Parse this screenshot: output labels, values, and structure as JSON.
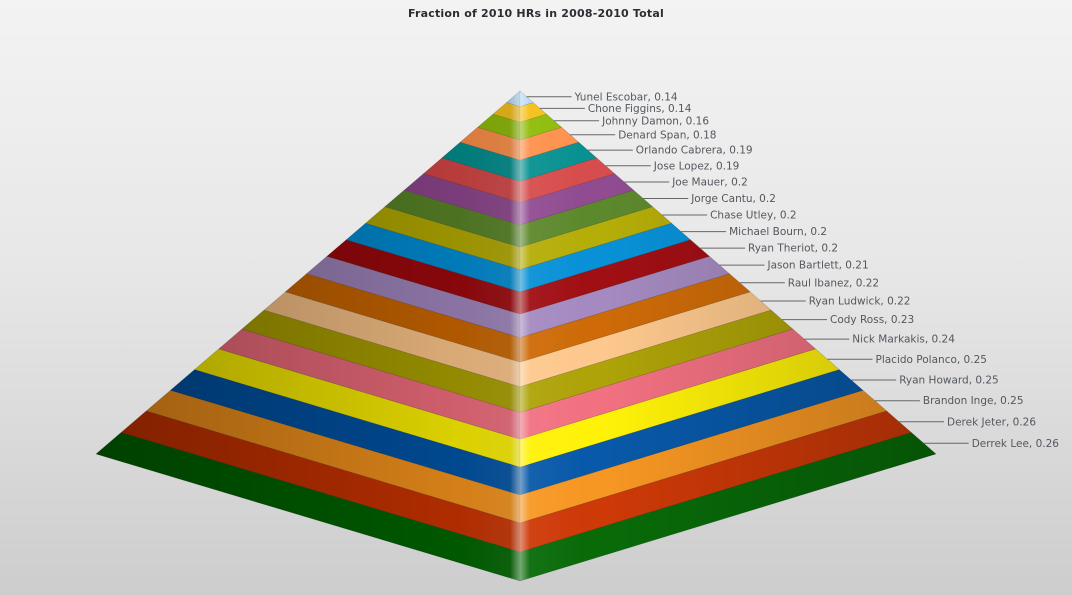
{
  "chart_data": {
    "type": "pyramid",
    "title": "Fraction of 2010 HRs in 2008-2010 Total",
    "label_format": "{name}, {value}",
    "labels_position": "right",
    "legend": "none",
    "points": [
      {
        "label": "Yunel Escobar",
        "value": 0.14,
        "color": "#AFD8F8"
      },
      {
        "label": "Chone Figgins",
        "value": 0.14,
        "color": "#F6BD0F"
      },
      {
        "label": "Johnny Damon",
        "value": 0.16,
        "color": "#8BBA00"
      },
      {
        "label": "Denard Span",
        "value": 0.18,
        "color": "#FF8E46"
      },
      {
        "label": "Orlando Cabrera",
        "value": 0.19,
        "color": "#008E8E"
      },
      {
        "label": "Jose Lopez",
        "value": 0.19,
        "color": "#D64646"
      },
      {
        "label": "Joe Mauer",
        "value": 0.2,
        "color": "#8E468E"
      },
      {
        "label": "Jorge Cantu",
        "value": 0.2,
        "color": "#588526"
      },
      {
        "label": "Chase Utley",
        "value": 0.2,
        "color": "#B3AA00"
      },
      {
        "label": "Michael Bourn",
        "value": 0.2,
        "color": "#008ED6"
      },
      {
        "label": "Ryan Theriot",
        "value": 0.2,
        "color": "#9D080D"
      },
      {
        "label": "Jason Bartlett",
        "value": 0.21,
        "color": "#A186BE"
      },
      {
        "label": "Raul Ibanez",
        "value": 0.22,
        "color": "#CC6600"
      },
      {
        "label": "Ryan Ludwick",
        "value": 0.22,
        "color": "#FDC689"
      },
      {
        "label": "Cody Ross",
        "value": 0.23,
        "color": "#ABA000"
      },
      {
        "label": "Nick Markakis",
        "value": 0.24,
        "color": "#F26D7D"
      },
      {
        "label": "Placido Polanco",
        "value": 0.25,
        "color": "#FFF200"
      },
      {
        "label": "Ryan Howard",
        "value": 0.25,
        "color": "#0054A6"
      },
      {
        "label": "Brandon Inge",
        "value": 0.25,
        "color": "#F7941C"
      },
      {
        "label": "Derek Jeter",
        "value": 0.26,
        "color": "#CC3300"
      },
      {
        "label": "Derrek Lee",
        "value": 0.26,
        "color": "#006600"
      }
    ],
    "styles": {
      "label_line_color": "#666666",
      "label_text_color": "#53585E",
      "title_color": "#2A2E33",
      "background_top": "#F3F3F3",
      "background_bottom": "#CDCDCD"
    }
  }
}
